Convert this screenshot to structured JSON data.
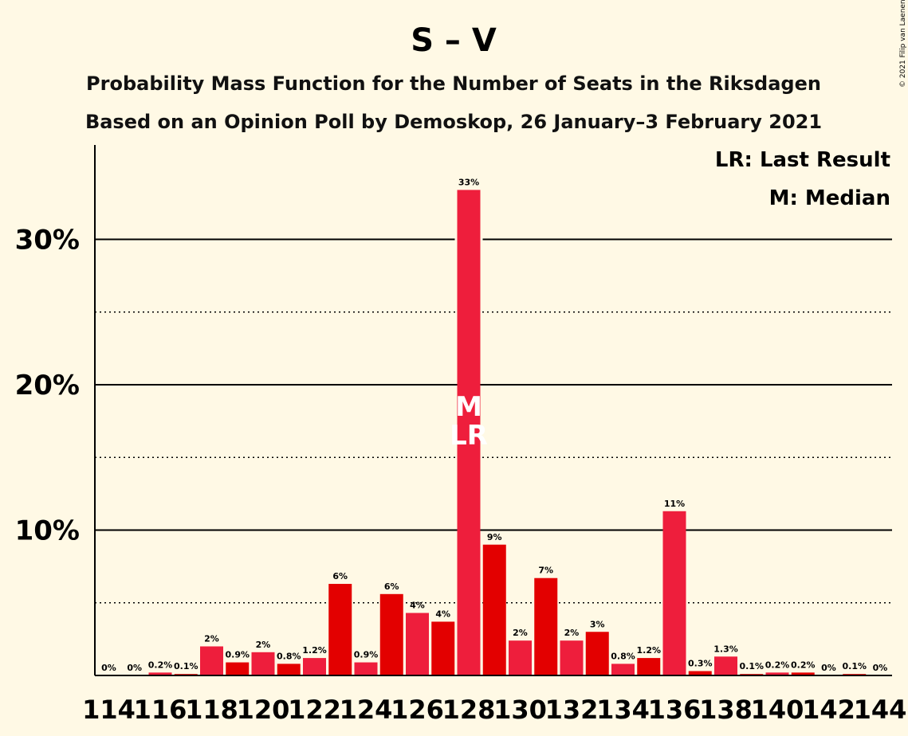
{
  "copyright": "© 2021 Filip van Laenen",
  "chart_data": {
    "type": "bar",
    "title": "S – V",
    "subtitle_lines": [
      "Probability Mass Function for the Number of Seats in the Riksdagen",
      "Based on an Opinion Poll by Demoskop, 26 January–3 February 2021"
    ],
    "legend": [
      "LR: Last Result",
      "M: Median"
    ],
    "legend_position": "top-right",
    "ylim": [
      0,
      36
    ],
    "yticks": [
      10,
      20,
      30
    ],
    "ytick_labels": [
      "10%",
      "20%",
      "30%"
    ],
    "minor_gridlines": [
      5,
      15,
      25
    ],
    "grid": true,
    "x": [
      114,
      115,
      116,
      117,
      118,
      119,
      120,
      121,
      122,
      123,
      124,
      125,
      126,
      127,
      128,
      129,
      130,
      131,
      132,
      133,
      134,
      135,
      136,
      137,
      138,
      139,
      140,
      141,
      142,
      143,
      144
    ],
    "xtick_labels": [
      "114",
      "116",
      "118",
      "120",
      "122",
      "124",
      "126",
      "128",
      "130",
      "132",
      "134",
      "136",
      "138",
      "140",
      "142",
      "144"
    ],
    "values": [
      0,
      0,
      0.2,
      0.1,
      2,
      0.9,
      1.6,
      0.8,
      1.2,
      6.3,
      0.9,
      5.6,
      4.3,
      3.7,
      33.4,
      9.0,
      2.4,
      6.7,
      2.4,
      3.0,
      0.8,
      1.2,
      11.3,
      0.3,
      1.3,
      0.1,
      0.2,
      0.2,
      0,
      0.1,
      0
    ],
    "value_labels": [
      "0%",
      "0%",
      "0.2%",
      "0.1%",
      "2%",
      "0.9%",
      "2%",
      "0.8%",
      "1.2%",
      "6%",
      "0.9%",
      "6%",
      "4%",
      "4%",
      "33%",
      "9%",
      "2%",
      "7%",
      "2%",
      "3%",
      "0.8%",
      "1.2%",
      "11%",
      "0.3%",
      "1.3%",
      "0.1%",
      "0.2%",
      "0.2%",
      "0%",
      "0.1%",
      "0%"
    ],
    "colors": [
      "#EE1E3C",
      "#E30000"
    ],
    "median_seat": 128,
    "last_result_seat": 128,
    "median_label": "M",
    "last_result_label": "LR"
  }
}
